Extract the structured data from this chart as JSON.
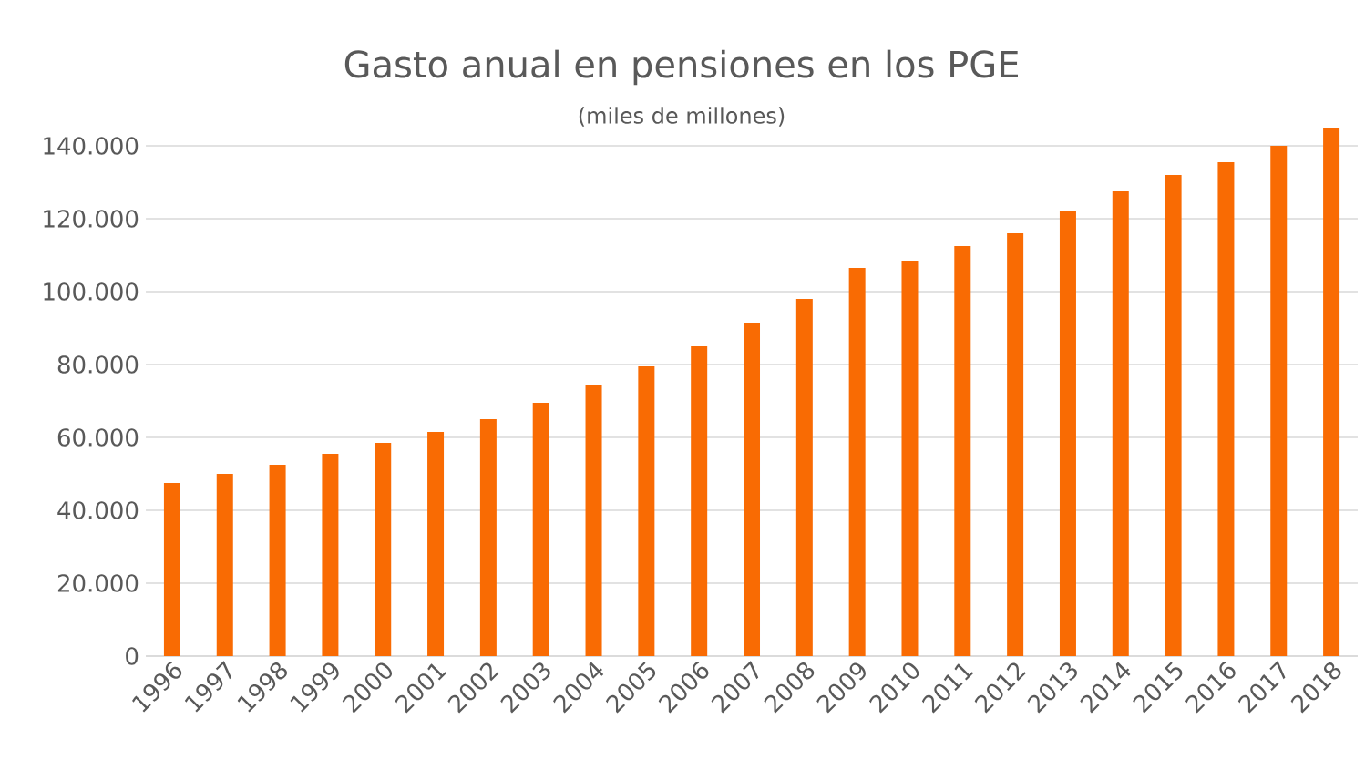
{
  "chart_data": {
    "type": "bar",
    "title": "Gasto anual en pensiones en los PGE",
    "subtitle": "(miles de millones)",
    "categories": [
      "1996",
      "1997",
      "1998",
      "1999",
      "2000",
      "2001",
      "2002",
      "2003",
      "2004",
      "2005",
      "2006",
      "2007",
      "2008",
      "2009",
      "2010",
      "2011",
      "2012",
      "2013",
      "2014",
      "2015",
      "2016",
      "2017",
      "2018"
    ],
    "values": [
      47500,
      50000,
      52500,
      55500,
      58500,
      61500,
      65000,
      69500,
      74500,
      79500,
      85000,
      91500,
      98000,
      106500,
      108500,
      112500,
      116000,
      122000,
      127500,
      132000,
      135500,
      140000,
      145000
    ],
    "color": "#f96b03",
    "ylim": [
      0,
      145000
    ],
    "yticks": [
      0,
      {
        "value": 20000,
        "label": "20.000"
      },
      {
        "value": 40000,
        "label": "40.000"
      },
      {
        "value": 60000,
        "label": "60.000"
      },
      {
        "value": 80000,
        "label": "80.000"
      },
      {
        "value": 100000,
        "label": "100.000"
      },
      {
        "value": 120000,
        "label": "120.000"
      },
      {
        "value": 140000,
        "label": "140.000"
      }
    ],
    "grid": "y"
  }
}
